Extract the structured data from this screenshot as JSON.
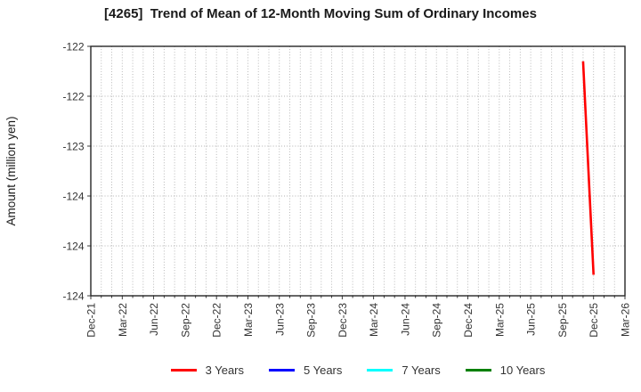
{
  "chart_data": {
    "type": "line",
    "title": "[4265]  Trend of Mean of 12-Month Moving Sum of Ordinary Incomes",
    "ylabel": "Amount (million yen)",
    "xlabel": "",
    "x_tick_labels": [
      "Dec-21",
      "Mar-22",
      "Jun-22",
      "Sep-22",
      "Dec-22",
      "Mar-23",
      "Jun-23",
      "Sep-23",
      "Dec-23",
      "Mar-24",
      "Jun-24",
      "Sep-24",
      "Dec-24",
      "Mar-25",
      "Jun-25",
      "Sep-25",
      "Dec-25",
      "Mar-26"
    ],
    "x_total_months": 51,
    "x_tick_every_months": 3,
    "x_minor_gridline_every_months": 1,
    "ylim": [
      -124.5,
      -122.0
    ],
    "y_tick_values": [
      -122.0,
      -122.5,
      -123.0,
      -123.5,
      -124.0,
      -124.5
    ],
    "y_tick_labels": [
      "-122",
      "-122",
      "-123",
      "-124",
      "-124",
      "-124"
    ],
    "grid": {
      "show": true,
      "linestyle": "dotted",
      "color": "#b0b0b0"
    },
    "axis_color": "#262626",
    "text_color": "#333333",
    "legend": {
      "position": "bottom-center"
    },
    "series": [
      {
        "name": "3 Years",
        "color": "#ff0000",
        "points": [
          {
            "x_label": "Nov-25",
            "x_month": 47,
            "y": -122.15
          },
          {
            "x_label": "Dec-25",
            "x_month": 48,
            "y": -124.29
          }
        ]
      },
      {
        "name": "5 Years",
        "color": "#0000ff",
        "points": []
      },
      {
        "name": "7 Years",
        "color": "#00ffff",
        "points": []
      },
      {
        "name": "10 Years",
        "color": "#008000",
        "points": []
      }
    ]
  }
}
